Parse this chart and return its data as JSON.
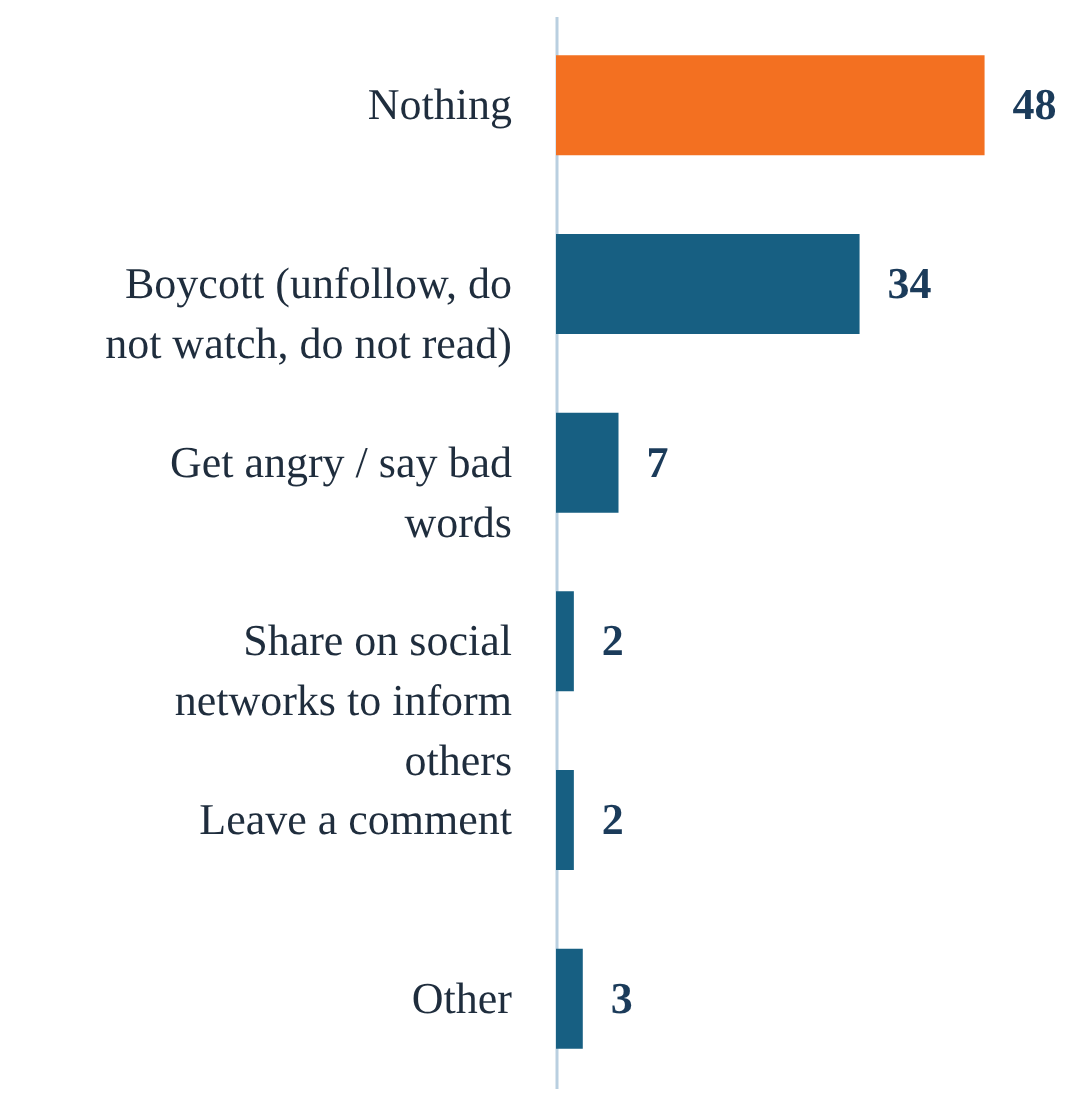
{
  "chart_data": {
    "type": "bar",
    "orientation": "horizontal",
    "categories": [
      "Nothing",
      "Boycott (unfollow, do not watch, do not read)",
      "Get angry / say bad words",
      "Share on social networks to inform others",
      "Leave a comment",
      "Other"
    ],
    "values": [
      48,
      34,
      7,
      2,
      2,
      3
    ],
    "colors": [
      "#f37021",
      "#175f82",
      "#175f82",
      "#175f82",
      "#175f82",
      "#175f82"
    ],
    "data_labels": true
  }
}
